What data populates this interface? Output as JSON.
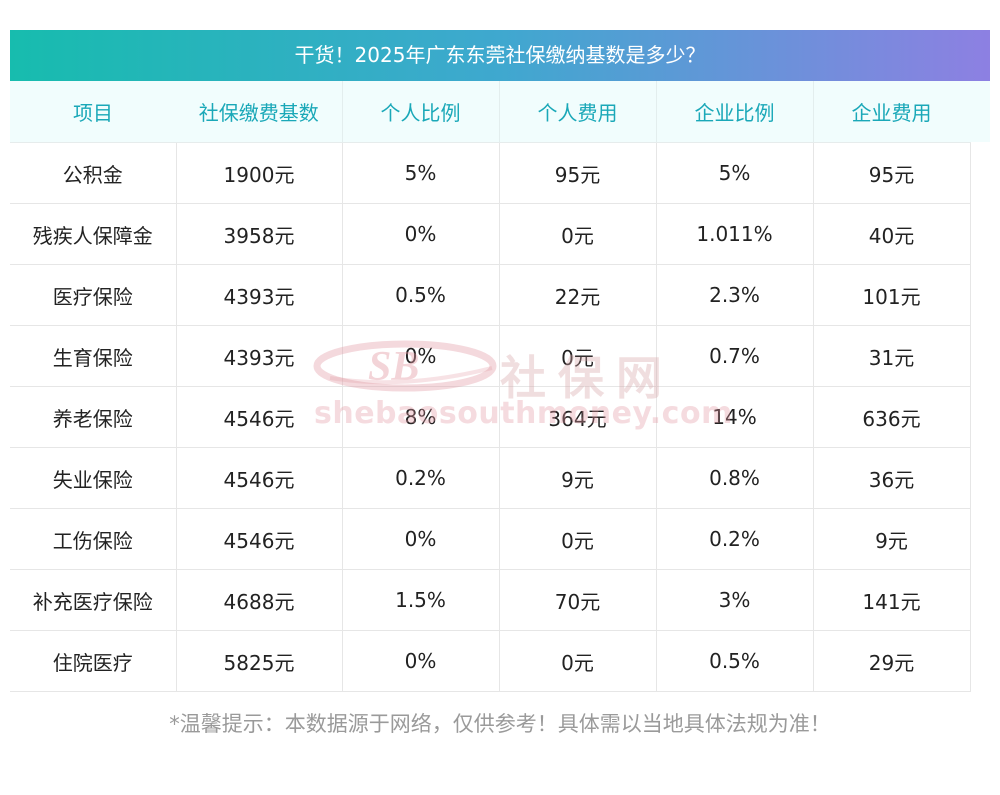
{
  "title": "干货！2025年广东东莞社保缴纳基数是多少？",
  "table": {
    "headers": [
      "项目",
      "社保缴费基数",
      "个人比例",
      "个人费用",
      "企业比例",
      "企业费用"
    ],
    "rows": [
      [
        "公积金",
        "1900元",
        "5%",
        "95元",
        "5%",
        "95元"
      ],
      [
        "残疾人保障金",
        "3958元",
        "0%",
        "0元",
        "1.011%",
        "40元"
      ],
      [
        "医疗保险",
        "4393元",
        "0.5%",
        "22元",
        "2.3%",
        "101元"
      ],
      [
        "生育保险",
        "4393元",
        "0%",
        "0元",
        "0.7%",
        "31元"
      ],
      [
        "养老保险",
        "4546元",
        "8%",
        "364元",
        "14%",
        "636元"
      ],
      [
        "失业保险",
        "4546元",
        "0.2%",
        "9元",
        "0.8%",
        "36元"
      ],
      [
        "工伤保险",
        "4546元",
        "0%",
        "0元",
        "0.2%",
        "9元"
      ],
      [
        "补充医疗保险",
        "4688元",
        "1.5%",
        "70元",
        "3%",
        "141元"
      ],
      [
        "住院医疗",
        "5825元",
        "0%",
        "0元",
        "0.5%",
        "29元"
      ]
    ]
  },
  "watermark": {
    "logo_text": "SB",
    "brand_cn": "社保网",
    "url": "shebaosouthmoney.com"
  },
  "footer": "*温馨提示：本数据源于网络，仅供参考！具体需以当地具体法规为准！"
}
